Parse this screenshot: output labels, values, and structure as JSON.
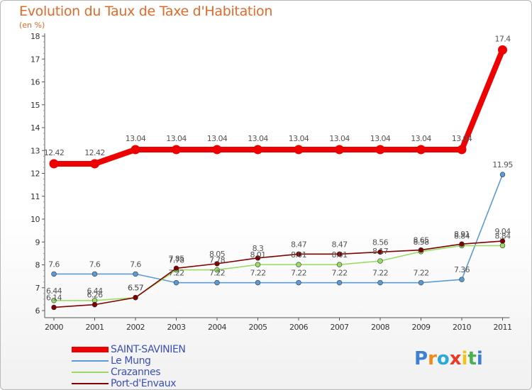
{
  "chart_data": {
    "type": "line",
    "title": "Evolution du Taux de Taxe d'Habitation",
    "subtitle": "(en %)",
    "x": [
      "2000",
      "2001",
      "2002",
      "2003",
      "2004",
      "2005",
      "2006",
      "2007",
      "2008",
      "2009",
      "2010",
      "2011"
    ],
    "ylim": [
      6,
      18
    ],
    "yticks": [
      "6",
      "7",
      "8",
      "9",
      "10",
      "11",
      "12",
      "13",
      "14",
      "15",
      "16",
      "17",
      "18"
    ],
    "grid": false,
    "legend_position": "bottom-left",
    "series": [
      {
        "name": "SAINT-SAVINIEN",
        "color": "#ee0000",
        "values": [
          12.42,
          12.42,
          13.04,
          13.04,
          13.04,
          13.04,
          13.04,
          13.04,
          13.04,
          13.04,
          13.04,
          17.4
        ],
        "labels": [
          "12.42",
          "12.42",
          "13.04",
          "13.04",
          "13.04",
          "13.04",
          "13.04",
          "13.04",
          "13.04",
          "13.04",
          "13.04",
          "17.4"
        ]
      },
      {
        "name": "Le Mung",
        "color": "#5b9bd5",
        "values": [
          7.6,
          7.6,
          7.6,
          7.22,
          7.22,
          7.22,
          7.22,
          7.22,
          7.22,
          7.22,
          7.36,
          11.95
        ],
        "labels": [
          "7.6",
          "7.6",
          "7.6",
          "7.22",
          "7.22",
          "7.22",
          "7.22",
          "7.22",
          "7.22",
          "7.22",
          "7.36",
          "11.95"
        ]
      },
      {
        "name": "Crazannes",
        "color": "#99dd66",
        "values": [
          6.44,
          6.44,
          6.57,
          7.78,
          7.78,
          8.01,
          8.01,
          8.01,
          8.17,
          8.58,
          8.84,
          8.84
        ],
        "labels": [
          "6.44",
          "6.44",
          "6.57",
          "7.78",
          "7.78",
          "8.01",
          "8.01",
          "8.01",
          "8.17",
          "8.58",
          "8.84",
          "8.84"
        ]
      },
      {
        "name": "Port-d'Envaux",
        "color": "#800000",
        "values": [
          6.14,
          6.26,
          6.57,
          7.85,
          8.05,
          8.3,
          8.47,
          8.47,
          8.56,
          8.65,
          8.91,
          9.04
        ],
        "labels": [
          "6.14",
          "6.26",
          "6.57",
          "7.85",
          "8.05",
          "8.3",
          "8.47",
          "8.47",
          "8.56",
          "8.65",
          "8.91",
          "9.04"
        ]
      }
    ]
  },
  "legend": {
    "items": [
      {
        "label": "SAINT-SAVINIEN",
        "color": "#ee0000",
        "thickness": 8
      },
      {
        "label": "Le Mung",
        "color": "#5b9bd5",
        "thickness": 2
      },
      {
        "label": "Crazannes",
        "color": "#99dd66",
        "thickness": 2
      },
      {
        "label": "Port-d'Envaux",
        "color": "#800000",
        "thickness": 2
      }
    ]
  },
  "logo": {
    "letters": [
      "P",
      "r",
      "o",
      "x",
      "i",
      "t",
      "i"
    ],
    "colors": [
      "#3d7fd6",
      "#f08a1c",
      "#2aa8d8",
      "#e83a2a",
      "#f2c41a",
      "#4caf50",
      "#3d7fd6"
    ]
  }
}
